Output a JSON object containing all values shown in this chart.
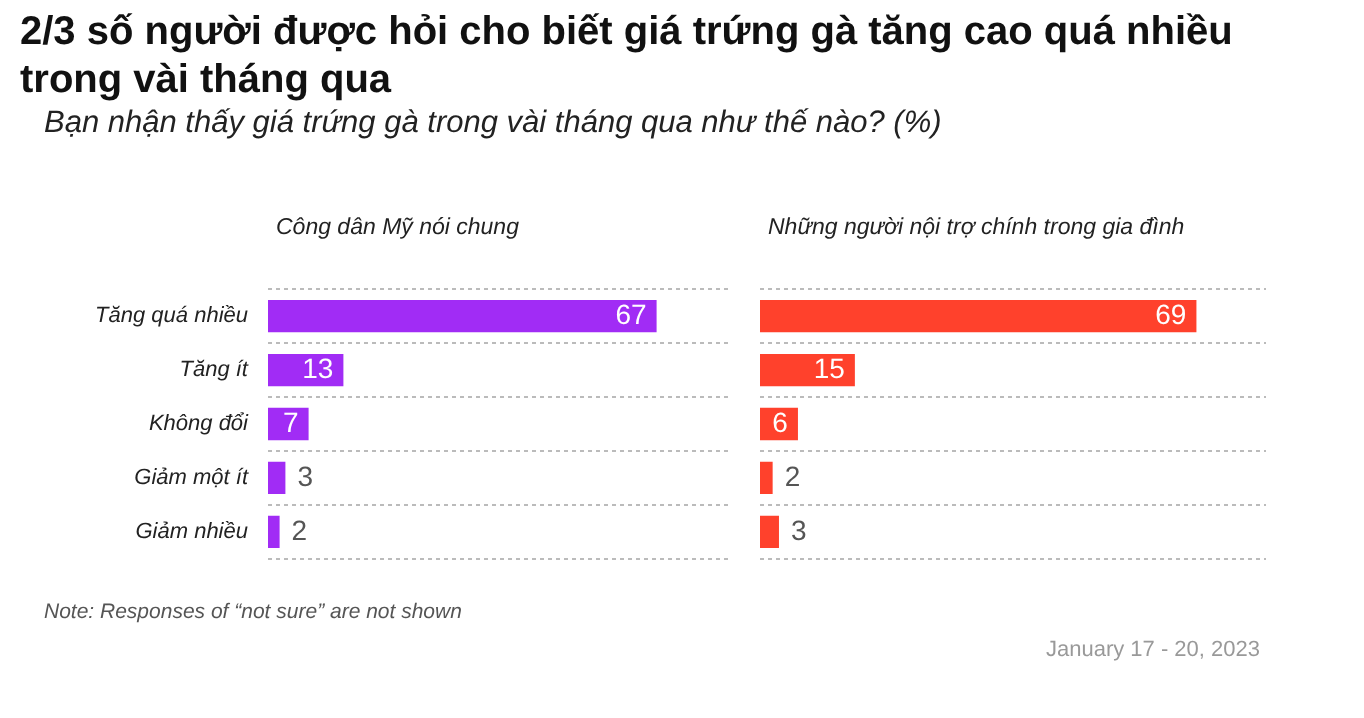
{
  "chart_data": [
    {
      "type": "bar",
      "orientation": "horizontal",
      "title": "2/3 số người được hỏi cho biết giá trứng gà tăng cao quá nhiều trong vài tháng qua",
      "subtitle": "Bạn nhận thấy giá trứng gà trong vài tháng qua như thế nào? (%)",
      "categories": [
        "Tăng quá nhiều",
        "Tăng ít",
        "Không đổi",
        "Giảm một ít",
        "Giảm nhiều"
      ],
      "series": [
        {
          "name": "Công dân Mỹ nói chung",
          "color": "#a12cf5",
          "values": [
            67,
            13,
            7,
            3,
            2
          ]
        }
      ],
      "data_labels": true,
      "grid": "y",
      "tick_labels": "y",
      "annotations": [
        "Note: Responses of “not sure” are not shown",
        "January 17 - 20, 2023"
      ]
    },
    {
      "type": "bar",
      "orientation": "horizontal",
      "categories": [
        null,
        null,
        null,
        null,
        null
      ],
      "series": [
        {
          "name": "Những người nội trợ chính trong gia đình",
          "color": "#ff412c",
          "values": [
            69,
            15,
            6,
            2,
            3
          ]
        }
      ],
      "data_labels": true,
      "grid": "y",
      "tick_labels": false
    }
  ]
}
